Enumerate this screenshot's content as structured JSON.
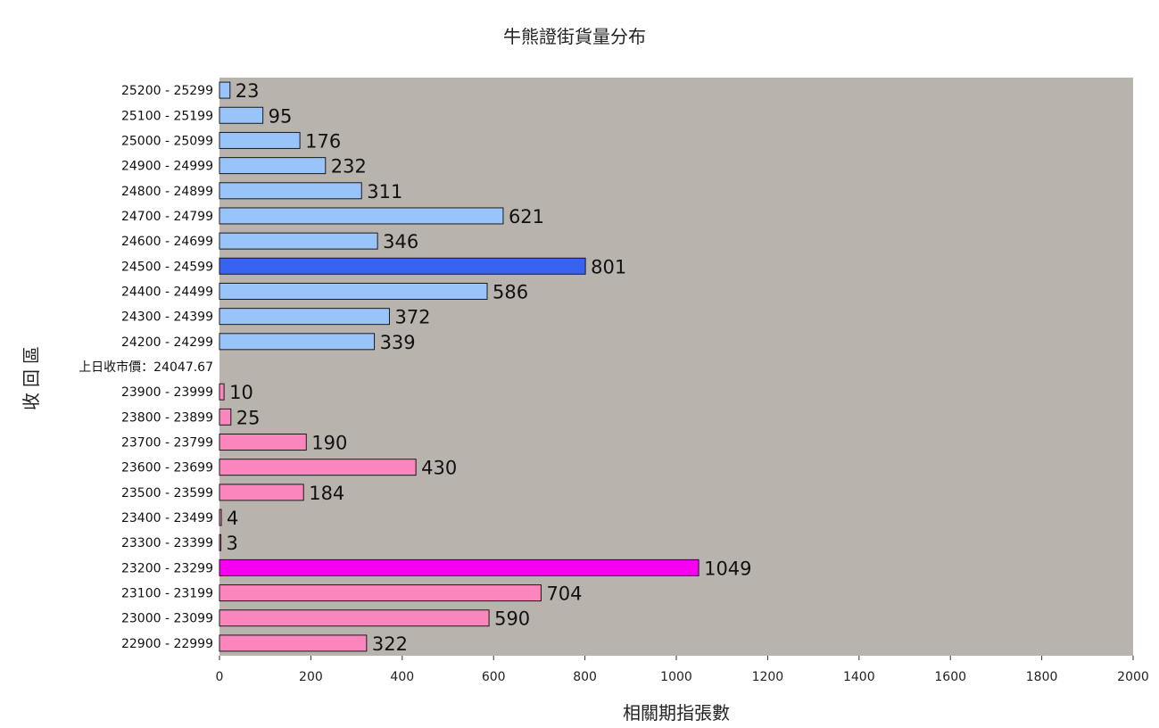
{
  "chart_data": {
    "type": "bar",
    "orientation": "horizontal",
    "title": "牛熊證街貨量分布",
    "xlabel": "相關期指張數",
    "ylabel": "收回區",
    "xlim": [
      0,
      2000
    ],
    "xticks": [
      0,
      200,
      400,
      600,
      800,
      1000,
      1200,
      1400,
      1600,
      1800,
      2000
    ],
    "grid": false,
    "legend": "none",
    "colors": {
      "plot_bg": "#b9b3ae",
      "bull": "#99c4fa",
      "bull_highlight": "#3862f0",
      "bear": "#fa86bd",
      "bear_highlight": "#f500f0",
      "bar_border": "#1a1a1a"
    },
    "categories": [
      {
        "label": "25200 - 25299",
        "value": 23,
        "group": "bull"
      },
      {
        "label": "25100 - 25199",
        "value": 95,
        "group": "bull"
      },
      {
        "label": "25000 - 25099",
        "value": 176,
        "group": "bull"
      },
      {
        "label": "24900 - 24999",
        "value": 232,
        "group": "bull"
      },
      {
        "label": "24800 - 24899",
        "value": 311,
        "group": "bull"
      },
      {
        "label": "24700 - 24799",
        "value": 621,
        "group": "bull"
      },
      {
        "label": "24600 - 24699",
        "value": 346,
        "group": "bull"
      },
      {
        "label": "24500 - 24599",
        "value": 801,
        "group": "bull",
        "highlight": true
      },
      {
        "label": "24400 - 24499",
        "value": 586,
        "group": "bull"
      },
      {
        "label": "24300 - 24399",
        "value": 372,
        "group": "bull"
      },
      {
        "label": "24200 - 24299",
        "value": 339,
        "group": "bull"
      },
      {
        "label": "上日收市價：24047.67",
        "value": null,
        "group": "marker"
      },
      {
        "label": "23900 - 23999",
        "value": 10,
        "group": "bear"
      },
      {
        "label": "23800 - 23899",
        "value": 25,
        "group": "bear"
      },
      {
        "label": "23700 - 23799",
        "value": 190,
        "group": "bear"
      },
      {
        "label": "23600 - 23699",
        "value": 430,
        "group": "bear"
      },
      {
        "label": "23500 - 23599",
        "value": 184,
        "group": "bear"
      },
      {
        "label": "23400 - 23499",
        "value": 4,
        "group": "bear"
      },
      {
        "label": "23300 - 23399",
        "value": 3,
        "group": "bear"
      },
      {
        "label": "23200 - 23299",
        "value": 1049,
        "group": "bear",
        "highlight": true
      },
      {
        "label": "23100 - 23199",
        "value": 704,
        "group": "bear"
      },
      {
        "label": "23000 - 23099",
        "value": 590,
        "group": "bear"
      },
      {
        "label": "22900 - 22999",
        "value": 322,
        "group": "bear"
      }
    ]
  }
}
